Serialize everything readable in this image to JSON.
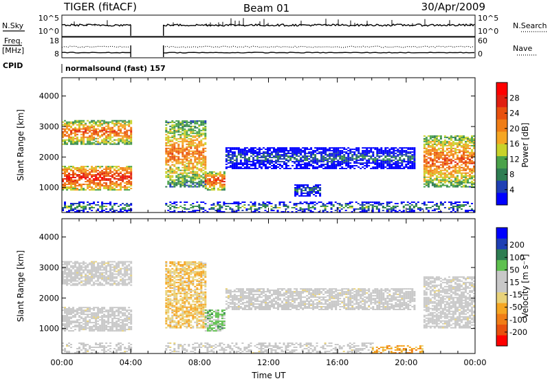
{
  "header": {
    "title": "TIGER (fitACF)",
    "beam": "Beam 01",
    "date": "30/Apr/2009"
  },
  "strip_labels": {
    "nsky": "N.Sky",
    "nsearch": "N.Search",
    "freq_line1": "Freq.",
    "freq_line2": "[MHz]",
    "nave": "Nave",
    "cpid": "CPID",
    "cpid_value": "normalsound (fast) 157",
    "noise_left_ticks": [
      "10^5",
      "10^0"
    ],
    "noise_right_ticks": [
      "10^5",
      "10^0"
    ],
    "freq_left_ticks": [
      "18",
      "8"
    ],
    "freq_right_ticks": [
      "60",
      "0"
    ]
  },
  "colors": {
    "power": [
      "#0000ff",
      "#1e3fb4",
      "#2e7d52",
      "#4aa24a",
      "#c8d22a",
      "#f5a623",
      "#f07d16",
      "#e8500e",
      "#e01e10",
      "#ff0000"
    ],
    "velocity": [
      "#0000ff",
      "#1e3fb4",
      "#2e7d52",
      "#5ec04e",
      "#c8c8c8",
      "#c8c8c8",
      "#e8d27a",
      "#f5a623",
      "#f07d16",
      "#e8500e",
      "#ff0000"
    ],
    "ground_scatter": "#c8c8c8"
  },
  "chart_data": [
    {
      "type": "heatmap",
      "name": "power",
      "xlabel": "",
      "ylabel": "Slant Range [km]",
      "xlim": [
        0,
        24
      ],
      "ylim": [
        180,
        4600
      ],
      "yticks": [
        "1000",
        "2000",
        "3000",
        "4000"
      ],
      "colorbar": {
        "label": "Power [dB]",
        "ticks": [
          "4",
          "8",
          "12",
          "16",
          "20",
          "24",
          "28"
        ],
        "range": [
          0,
          32
        ]
      },
      "data_gaps_hours": [
        [
          4.0,
          5.9
        ]
      ],
      "scatter_regions": [
        {
          "t0": 0.0,
          "t1": 4.0,
          "r0": 900,
          "r1": 1700,
          "level": 28
        },
        {
          "t0": 0.0,
          "t1": 4.0,
          "r0": 2400,
          "r1": 3200,
          "level": 24
        },
        {
          "t0": 6.0,
          "t1": 8.3,
          "r0": 1000,
          "r1": 3200,
          "level": 22
        },
        {
          "t0": 8.3,
          "t1": 9.4,
          "r0": 900,
          "r1": 1500,
          "level": 26
        },
        {
          "t0": 9.5,
          "t1": 20.5,
          "r0": 1600,
          "r1": 2300,
          "level": 8
        },
        {
          "t0": 13.5,
          "t1": 15.0,
          "r0": 700,
          "r1": 1100,
          "level": 10
        },
        {
          "t0": 21.0,
          "t1": 24.0,
          "r0": 1000,
          "r1": 2700,
          "level": 24
        },
        {
          "t0": 0.0,
          "t1": 24.0,
          "r0": 180,
          "r1": 500,
          "level": 12
        }
      ]
    },
    {
      "type": "heatmap",
      "name": "velocity",
      "xlabel": "Time UT",
      "ylabel": "Slant Range [km]",
      "xlim": [
        0,
        24
      ],
      "ylim": [
        180,
        4600
      ],
      "xticks": [
        "00:00",
        "04:00",
        "08:00",
        "12:00",
        "16:00",
        "20:00",
        "00:00"
      ],
      "yticks": [
        "1000",
        "2000",
        "3000",
        "4000"
      ],
      "colorbar": {
        "label": "Velocity [m s⁻¹]",
        "ticks": [
          "200",
          "100",
          "50",
          "15",
          "-15",
          "-50",
          "-100",
          "-200"
        ],
        "range": [
          -250,
          250
        ]
      },
      "data_gaps_hours": [
        [
          4.0,
          5.9
        ]
      ],
      "scatter_regions": [
        {
          "t0": 0.0,
          "t1": 4.0,
          "r0": 900,
          "r1": 1700,
          "v": 0,
          "ground": true
        },
        {
          "t0": 0.0,
          "t1": 4.0,
          "r0": 2400,
          "r1": 3200,
          "v": 0,
          "ground": true
        },
        {
          "t0": 6.0,
          "t1": 8.3,
          "r0": 1000,
          "r1": 3200,
          "v": -60
        },
        {
          "t0": 8.3,
          "t1": 9.4,
          "r0": 900,
          "r1": 1600,
          "v": 80
        },
        {
          "t0": 9.5,
          "t1": 20.5,
          "r0": 1600,
          "r1": 2300,
          "v": 0,
          "ground": true
        },
        {
          "t0": 18.0,
          "t1": 21.0,
          "r0": 180,
          "r1": 450,
          "v": -90
        },
        {
          "t0": 21.0,
          "t1": 24.0,
          "r0": 1000,
          "r1": 2700,
          "v": 0,
          "ground": true
        },
        {
          "t0": 0.0,
          "t1": 18.0,
          "r0": 180,
          "r1": 500,
          "v": 20
        }
      ]
    }
  ]
}
